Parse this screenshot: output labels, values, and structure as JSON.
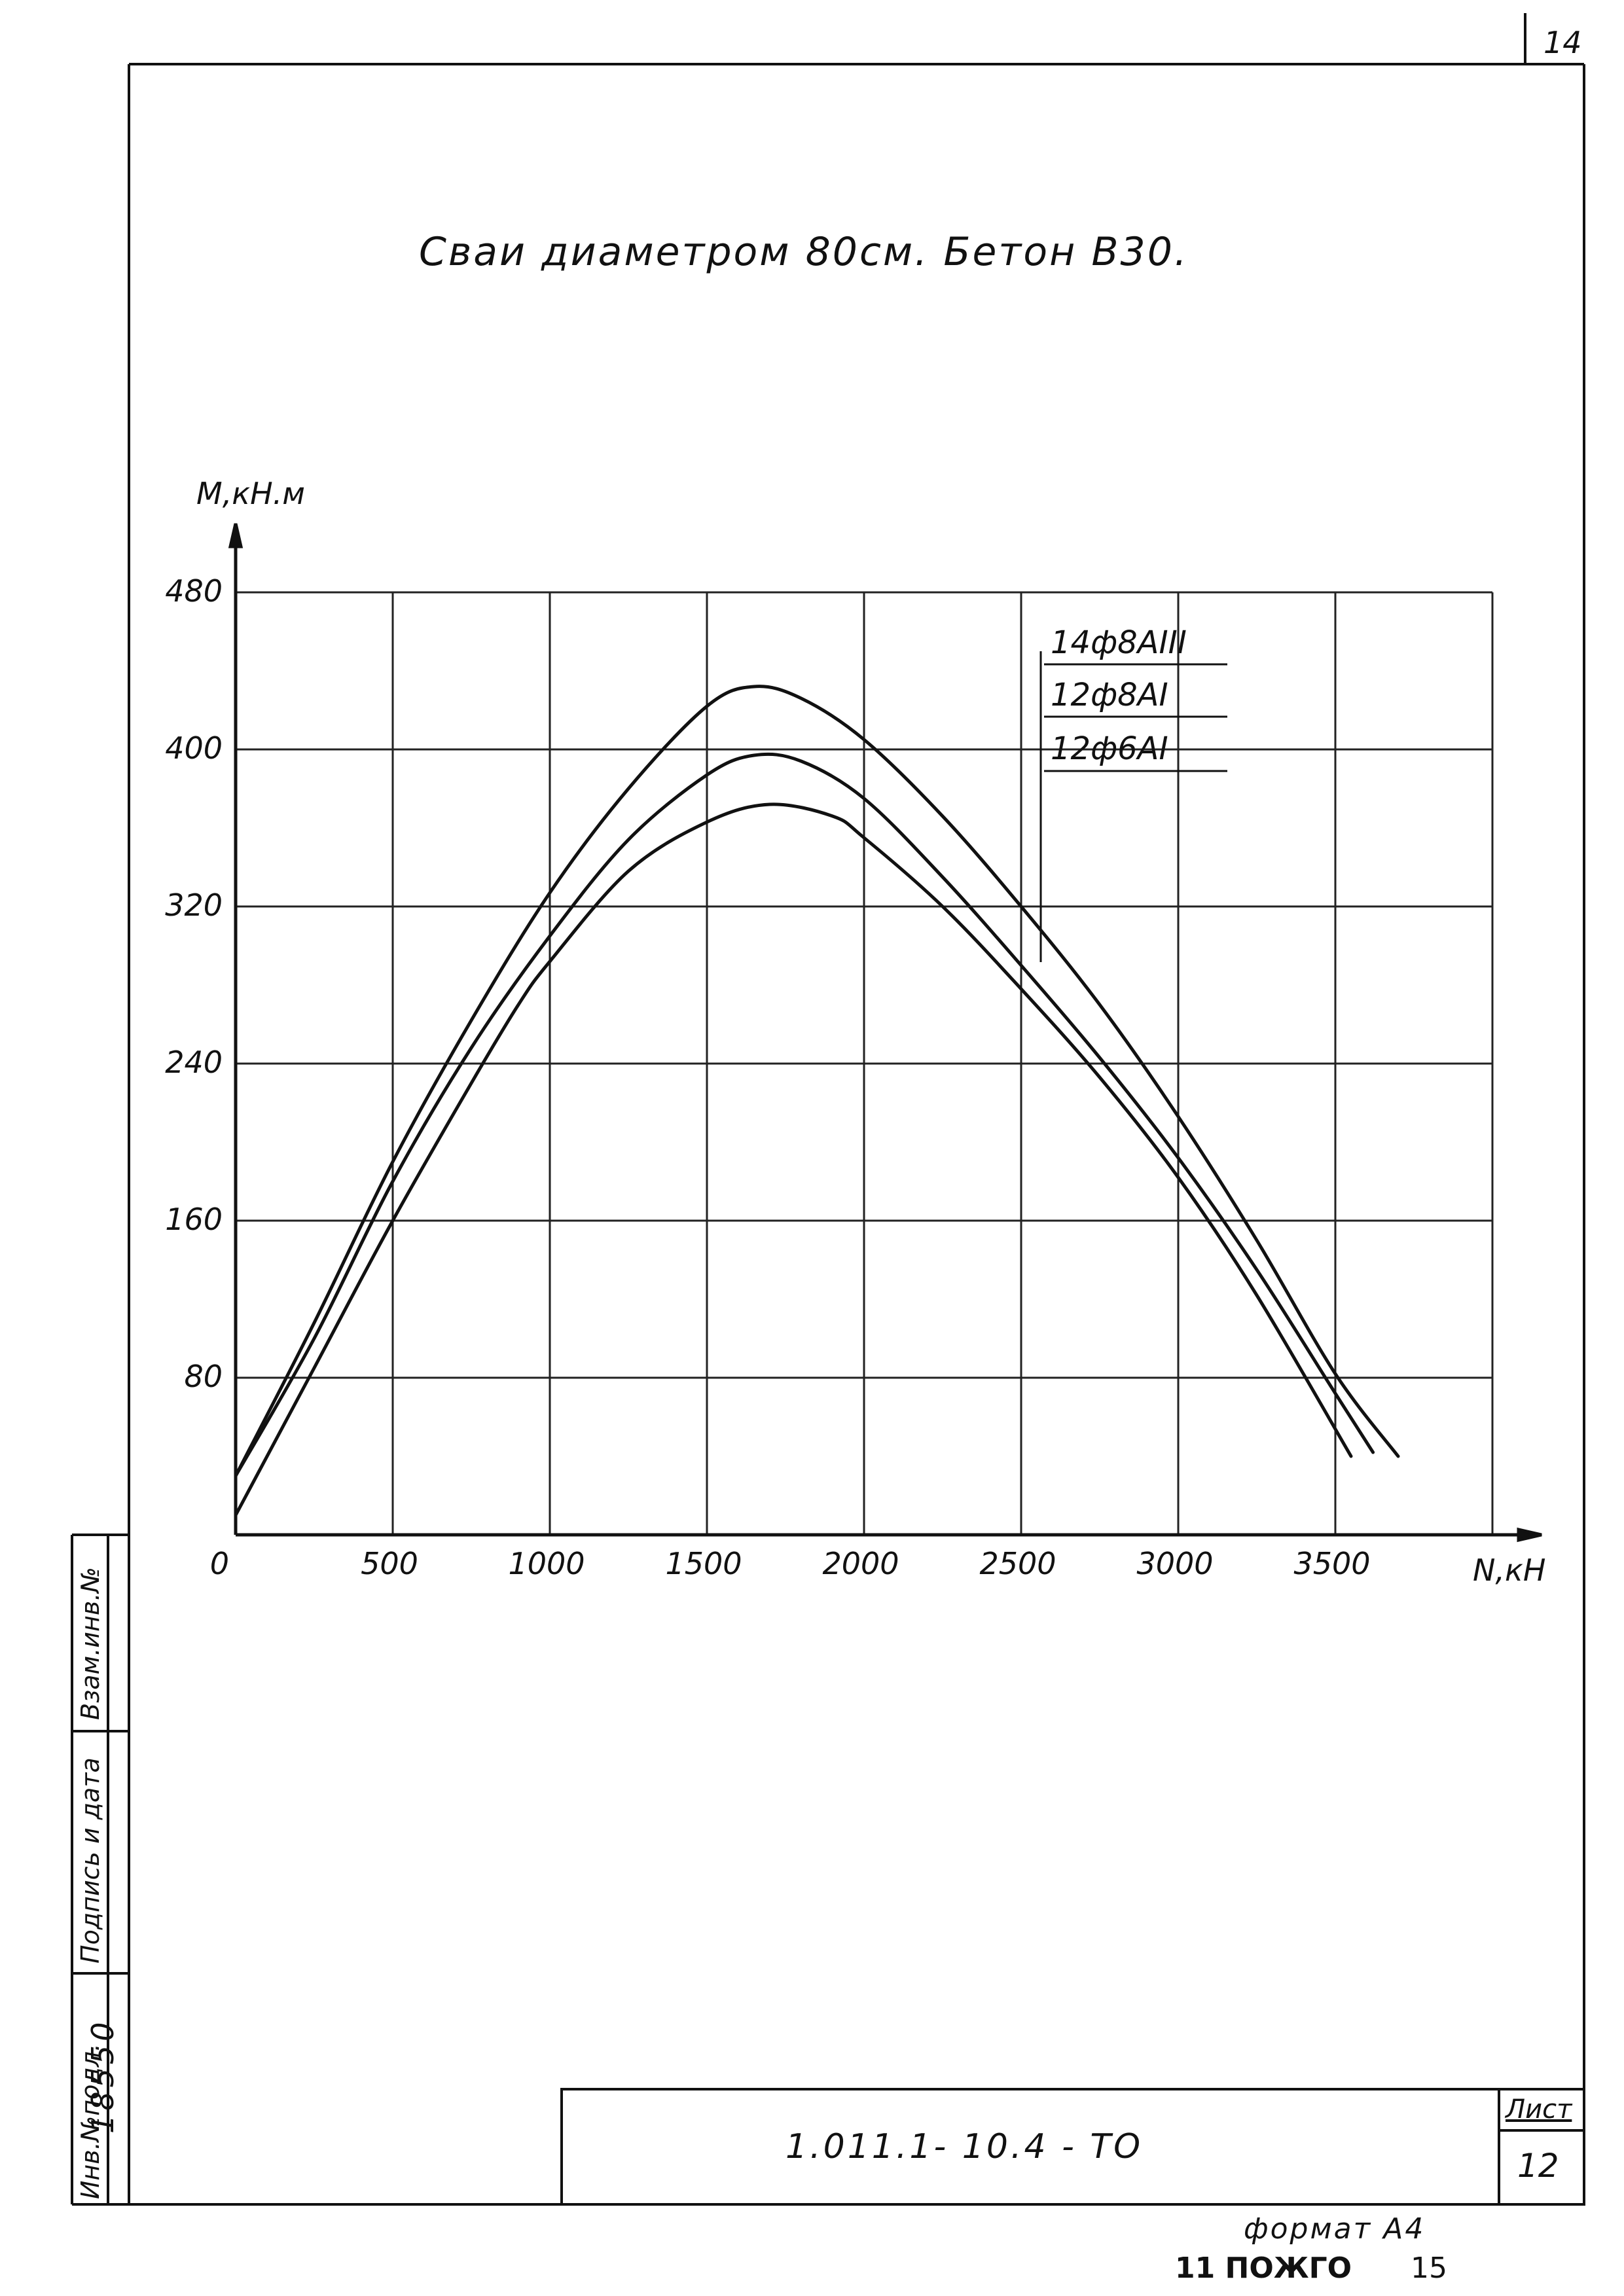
{
  "sheet": {
    "page_number_top": "14",
    "title": "Сваи диаметром 80см. Бетон В30.",
    "doc_code": "1.011.1- 10.4 - ТО",
    "list_label": "Лист",
    "list_number": "12",
    "format_label": "формат А4",
    "stamp_left": "11 ПОЖГО",
    "stamp_right": "15",
    "side_labels": {
      "inv_podl": "Инв.№подл.",
      "podpis": "Подпись и дата",
      "vzam": "Взам.инв.№"
    },
    "inv_number": "18550"
  },
  "chart_data": {
    "type": "line",
    "xlabel": "N,кН",
    "ylabel": "M,кН.м",
    "xlim": [
      0,
      4000
    ],
    "ylim": [
      0,
      480
    ],
    "grid": true,
    "x_ticks": [
      0,
      500,
      1000,
      1500,
      2000,
      2500,
      3000,
      3500
    ],
    "x_tick_labels": [
      "0",
      "500",
      "1000",
      "1500",
      "2000",
      "2500",
      "3000",
      "3500"
    ],
    "y_ticks": [
      80,
      160,
      240,
      320,
      400,
      480
    ],
    "y_tick_labels": [
      "80",
      "160",
      "240",
      "320",
      "400",
      "480"
    ],
    "legend_position": "top-right",
    "series": [
      {
        "name": "14ф8АIII",
        "x": [
          0,
          250,
          500,
          750,
          1000,
          1250,
          1500,
          1650,
          1800,
          2000,
          2250,
          2500,
          2750,
          3000,
          3250,
          3500,
          3700
        ],
        "y": [
          30,
          108,
          190,
          262,
          327,
          380,
          422,
          432,
          426,
          405,
          366,
          320,
          270,
          213,
          150,
          82,
          40
        ]
      },
      {
        "name": "12ф8АI",
        "x": [
          0,
          250,
          500,
          750,
          1000,
          1250,
          1500,
          1650,
          1800,
          2000,
          2250,
          2500,
          2750,
          3000,
          3250,
          3500,
          3620
        ],
        "y": [
          30,
          100,
          180,
          248,
          305,
          354,
          387,
          397,
          394,
          375,
          335,
          290,
          243,
          192,
          135,
          72,
          42
        ]
      },
      {
        "name": "12ф6АI",
        "x": [
          0,
          250,
          500,
          750,
          900,
          1000,
          1250,
          1500,
          1700,
          1900,
          2000,
          2250,
          2500,
          2750,
          3000,
          3250,
          3550
        ],
        "y": [
          10,
          85,
          160,
          230,
          270,
          292,
          338,
          363,
          372,
          366,
          355,
          320,
          278,
          233,
          182,
          122,
          40
        ]
      }
    ]
  }
}
